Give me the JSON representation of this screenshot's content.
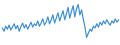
{
  "chart_data": {
    "type": "line",
    "categories": [
      null,
      null,
      null,
      null,
      null,
      null,
      null,
      null,
      null,
      null,
      null,
      null,
      null,
      null,
      null,
      null,
      null,
      null,
      null,
      null,
      null,
      null,
      null,
      null,
      null,
      null,
      null,
      null,
      null,
      null,
      null,
      null,
      null,
      null,
      null,
      null,
      null,
      null,
      null,
      null,
      null,
      null,
      null,
      null,
      null,
      null,
      null,
      null,
      null,
      null,
      null,
      null,
      null,
      null,
      null,
      null,
      null,
      null,
      null,
      null,
      null,
      null,
      null,
      null,
      null,
      null,
      null,
      null,
      null,
      null
    ],
    "values": [
      38,
      30,
      42,
      35,
      45,
      33,
      40,
      48,
      36,
      44,
      30,
      41,
      50,
      38,
      46,
      35,
      43,
      52,
      40,
      48,
      44,
      55,
      42,
      50,
      60,
      45,
      52,
      65,
      48,
      58,
      70,
      50,
      62,
      75,
      55,
      68,
      80,
      58,
      72,
      88,
      62,
      78,
      92,
      65,
      85,
      95,
      70,
      82,
      60,
      40,
      15,
      25,
      35,
      30,
      42,
      38,
      48,
      40,
      52,
      45,
      55,
      48,
      58,
      50,
      45,
      55,
      50,
      60,
      52,
      58
    ],
    "color": "#3b8fd9",
    "ylim": [
      0,
      100
    ],
    "grid": false,
    "tick_labels": false
  }
}
